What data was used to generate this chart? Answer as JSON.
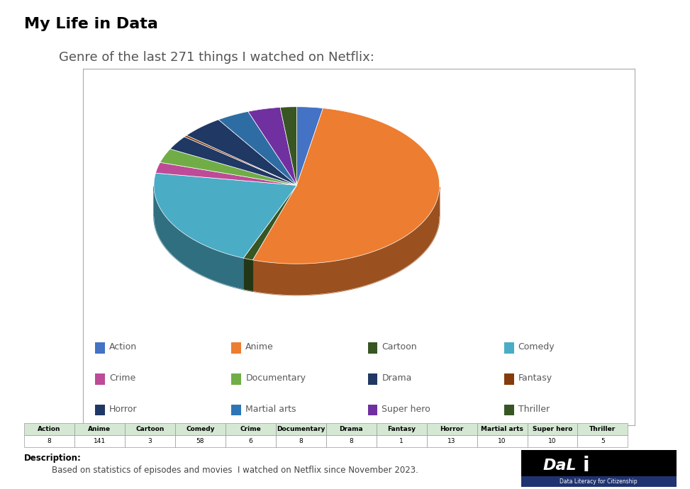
{
  "title_main": "My Life in Data",
  "subtitle": "Genre of the last 271 things I watched on Netflix:",
  "categories": [
    "Action",
    "Anime",
    "Cartoon",
    "Comedy",
    "Crime",
    "Documentary",
    "Drama",
    "Fantasy",
    "Horror",
    "Martial arts",
    "Super hero",
    "Thriller"
  ],
  "values": [
    8,
    141,
    3,
    58,
    6,
    8,
    8,
    1,
    13,
    10,
    10,
    5
  ],
  "colors": [
    "#4472C4",
    "#ED7D31",
    "#375623",
    "#4BACC6",
    "#9B3CA0",
    "#4CAF50",
    "#1F3864",
    "#843C0C",
    "#1F3864",
    "#2E6DA4",
    "#8E44AD",
    "#375623"
  ],
  "pie_colors": [
    "#4472C4",
    "#ED7D31",
    "#375623",
    "#4BACC6",
    "#BE4B97",
    "#70AD47",
    "#203864",
    "#843C0C",
    "#1F3864",
    "#2E6DA4",
    "#7030A0",
    "#375623"
  ],
  "legend_items": [
    {
      "label": "Action",
      "color": "#4472C4"
    },
    {
      "label": "Anime",
      "color": "#ED7D31"
    },
    {
      "label": "Cartoon",
      "color": "#375623"
    },
    {
      "label": "Comedy",
      "color": "#4BACC6"
    },
    {
      "label": "Crime",
      "color": "#BE4B97"
    },
    {
      "label": "Documentary",
      "color": "#70AD47"
    },
    {
      "label": "Drama",
      "color": "#1F3864"
    },
    {
      "label": "Fantasy",
      "color": "#843C0C"
    },
    {
      "label": "Horror",
      "color": "#1F3864"
    },
    {
      "label": "Martial arts",
      "color": "#2E75B6"
    },
    {
      "label": "Super hero",
      "color": "#7030A0"
    },
    {
      "label": "Thriller",
      "color": "#375623"
    }
  ],
  "description": "Description:",
  "description_detail": "Based on statistics of episodes and movies  I watched on Netflix since November 2023.",
  "background_color": "#FFFFFF",
  "chart_border_color": "#AAAAAA",
  "table_header_bg": "#D5E8D4",
  "table_header_text": "#000000",
  "table_border_color": "#999999",
  "title_fontsize": 16,
  "subtitle_fontsize": 13,
  "legend_fontsize": 9,
  "legend_text_color": "#595959"
}
